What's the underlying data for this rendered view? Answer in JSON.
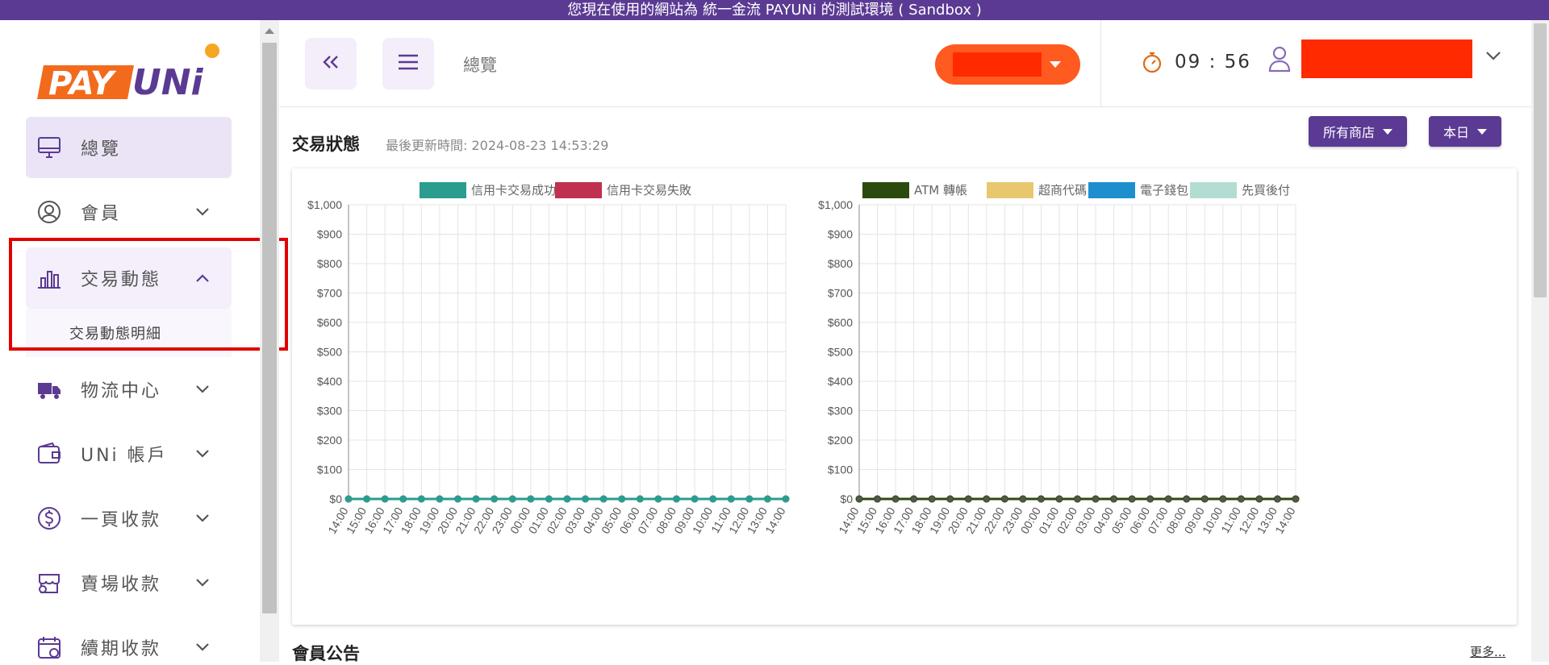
{
  "banner": {
    "text": "您現在使用的網站為 統一金流 PAYUNi 的測試環境 ( Sandbox )"
  },
  "brand": {
    "logo_left": "PAY",
    "logo_right": "UNi",
    "primary": "#5b3a93",
    "orange": "#f26b1d"
  },
  "sidebar": {
    "items": [
      {
        "label": "總覽",
        "icon": "monitor-icon"
      },
      {
        "label": "會員",
        "icon": "user-circle-icon"
      },
      {
        "label": "交易動態",
        "icon": "bar-chart-icon"
      },
      {
        "label": "物流中心",
        "icon": "truck-icon"
      },
      {
        "label": "UNi 帳戶",
        "icon": "wallet-icon"
      },
      {
        "label": "一頁收款",
        "icon": "dollar-icon"
      },
      {
        "label": "賣場收款",
        "icon": "store-icon"
      },
      {
        "label": "續期收款",
        "icon": "calendar-icon"
      }
    ],
    "submenu": {
      "label": "交易動態明細"
    }
  },
  "header": {
    "breadcrumb": "總覽",
    "timer": "09 : 56"
  },
  "section": {
    "title": "交易狀態",
    "updated": "最後更新時間: 2024-08-23 14:53:29",
    "store_filter": "所有商店",
    "period_filter": "本日"
  },
  "notice": {
    "title": "會員公告",
    "more": "更多..."
  },
  "chart_data": [
    {
      "type": "line",
      "x": [
        "14:00",
        "15:00",
        "16:00",
        "17:00",
        "18:00",
        "19:00",
        "20:00",
        "21:00",
        "22:00",
        "23:00",
        "00:00",
        "01:00",
        "02:00",
        "03:00",
        "04:00",
        "05:00",
        "06:00",
        "07:00",
        "08:00",
        "09:00",
        "10:00",
        "11:00",
        "12:00",
        "13:00",
        "14:00"
      ],
      "yticks": [
        "$0",
        "$100",
        "$200",
        "$300",
        "$400",
        "$500",
        "$600",
        "$700",
        "$800",
        "$900",
        "$1,000"
      ],
      "ylim": [
        0,
        1000
      ],
      "grid": true,
      "legend": "top-center",
      "series": [
        {
          "name": "信用卡交易成功",
          "color": "#2a9d8f",
          "values": [
            0,
            0,
            0,
            0,
            0,
            0,
            0,
            0,
            0,
            0,
            0,
            0,
            0,
            0,
            0,
            0,
            0,
            0,
            0,
            0,
            0,
            0,
            0,
            0,
            0
          ]
        },
        {
          "name": "信用卡交易失敗",
          "color": "#c0304f",
          "values": [
            0,
            0,
            0,
            0,
            0,
            0,
            0,
            0,
            0,
            0,
            0,
            0,
            0,
            0,
            0,
            0,
            0,
            0,
            0,
            0,
            0,
            0,
            0,
            0,
            0
          ]
        }
      ]
    },
    {
      "type": "line",
      "x": [
        "14:00",
        "15:00",
        "16:00",
        "17:00",
        "18:00",
        "19:00",
        "20:00",
        "21:00",
        "22:00",
        "23:00",
        "00:00",
        "01:00",
        "02:00",
        "03:00",
        "04:00",
        "05:00",
        "06:00",
        "07:00",
        "08:00",
        "09:00",
        "10:00",
        "11:00",
        "12:00",
        "13:00",
        "14:00"
      ],
      "yticks": [
        "$0",
        "$100",
        "$200",
        "$300",
        "$400",
        "$500",
        "$600",
        "$700",
        "$800",
        "$900",
        "$1,000"
      ],
      "ylim": [
        0,
        1000
      ],
      "grid": true,
      "legend": "top-center",
      "series": [
        {
          "name": "ATM 轉帳",
          "color": "#2d4a0e",
          "values": [
            0,
            0,
            0,
            0,
            0,
            0,
            0,
            0,
            0,
            0,
            0,
            0,
            0,
            0,
            0,
            0,
            0,
            0,
            0,
            0,
            0,
            0,
            0,
            0,
            0
          ]
        },
        {
          "name": "超商代碼",
          "color": "#e8c76e",
          "values": [
            0,
            0,
            0,
            0,
            0,
            0,
            0,
            0,
            0,
            0,
            0,
            0,
            0,
            0,
            0,
            0,
            0,
            0,
            0,
            0,
            0,
            0,
            0,
            0,
            0
          ]
        },
        {
          "name": "電子錢包",
          "color": "#1e8fce",
          "values": [
            0,
            0,
            0,
            0,
            0,
            0,
            0,
            0,
            0,
            0,
            0,
            0,
            0,
            0,
            0,
            0,
            0,
            0,
            0,
            0,
            0,
            0,
            0,
            0,
            0
          ]
        },
        {
          "name": "先買後付",
          "color": "#b3ddd3",
          "values": [
            0,
            0,
            0,
            0,
            0,
            0,
            0,
            0,
            0,
            0,
            0,
            0,
            0,
            0,
            0,
            0,
            0,
            0,
            0,
            0,
            0,
            0,
            0,
            0,
            0
          ]
        }
      ]
    }
  ]
}
